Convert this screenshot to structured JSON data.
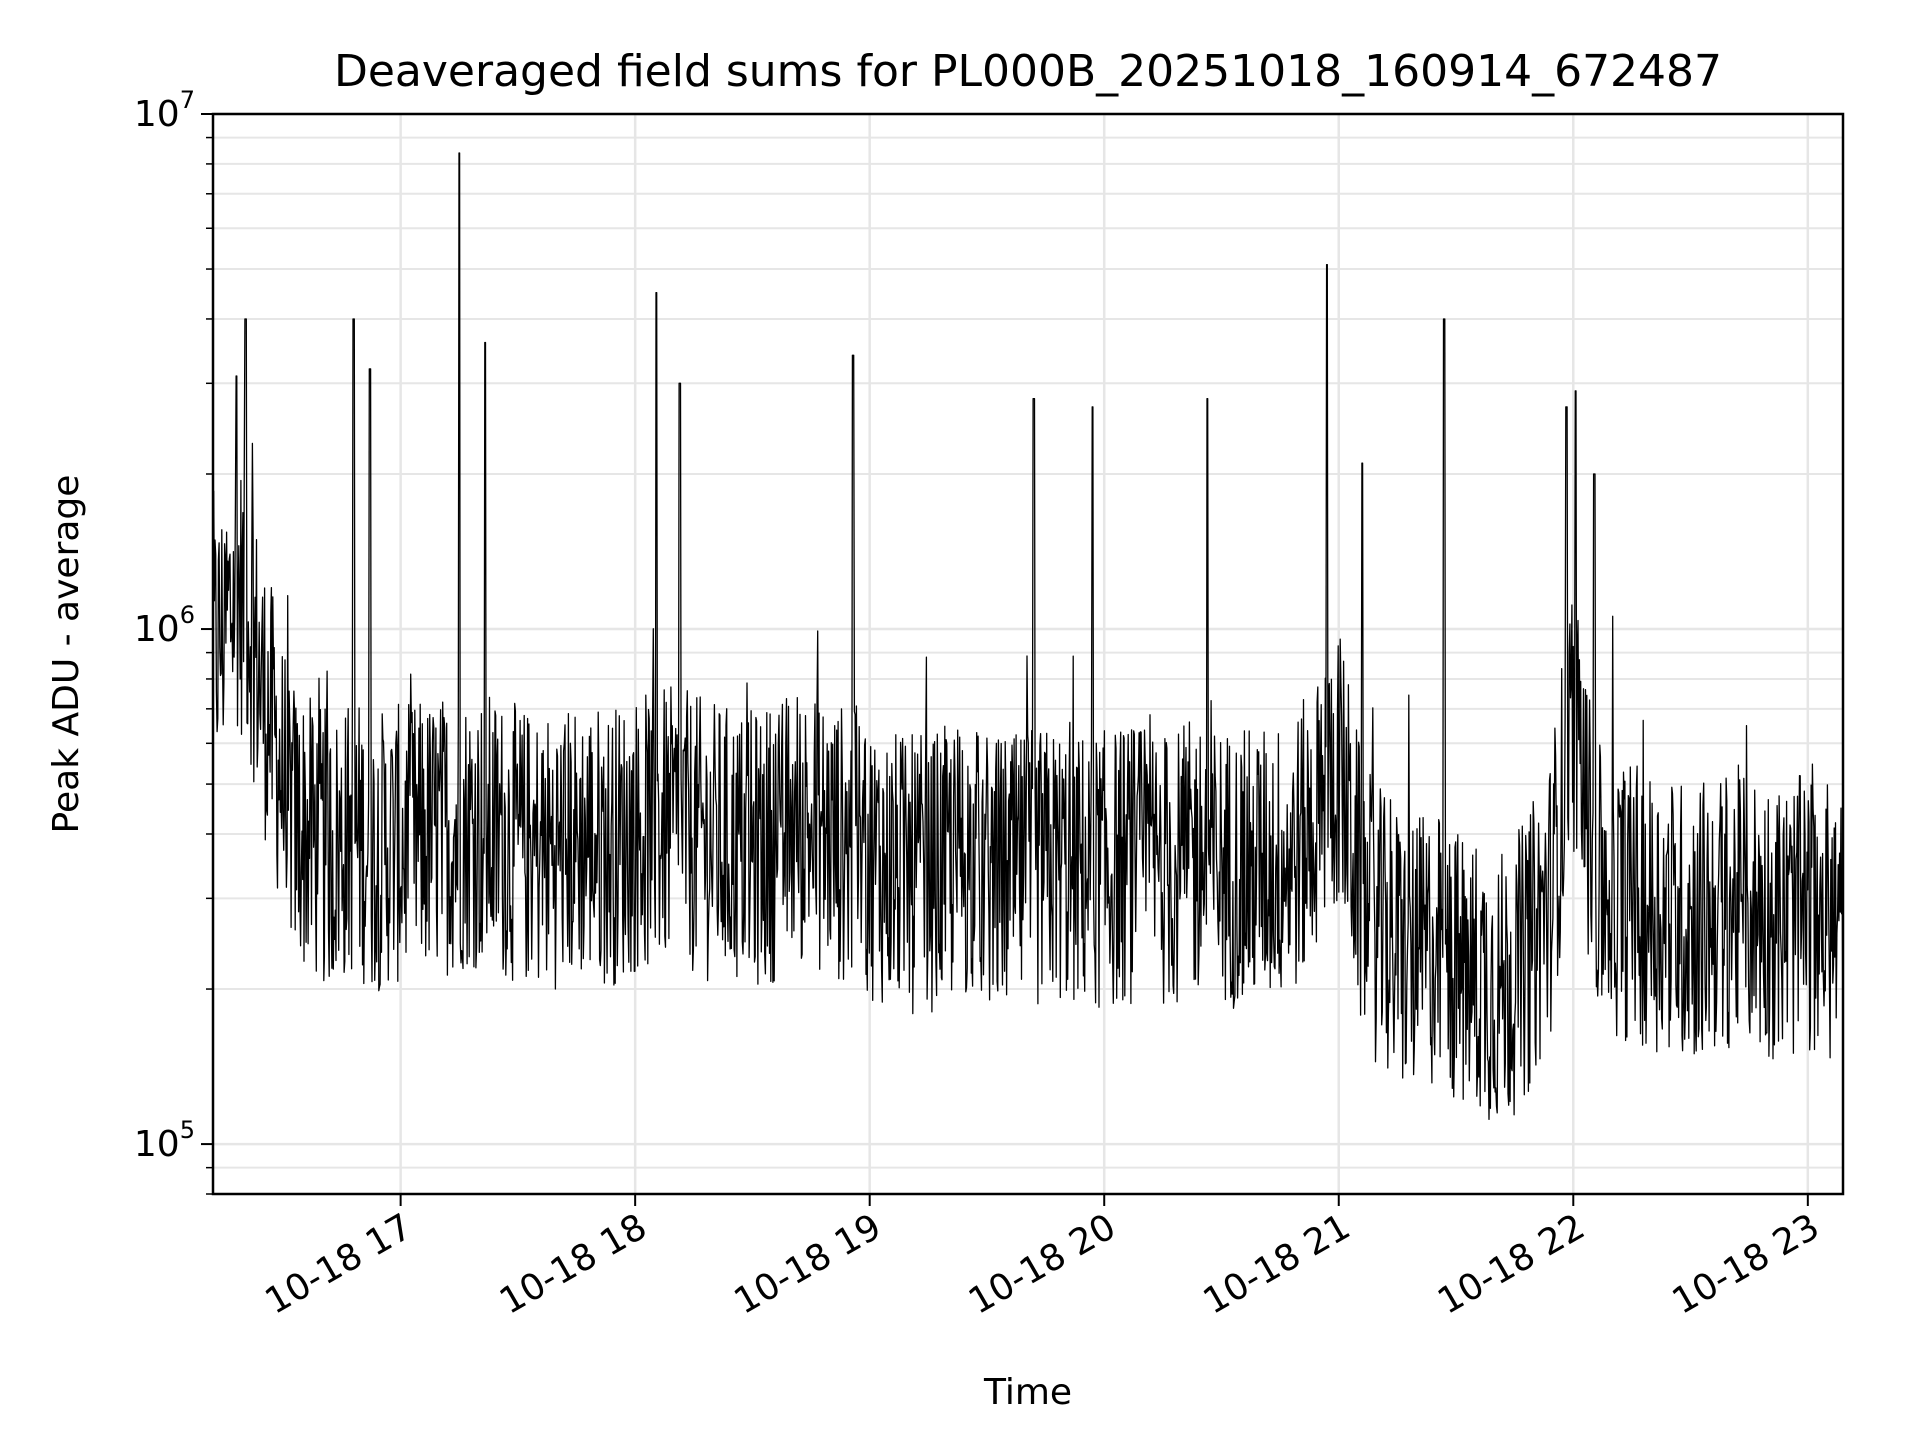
{
  "chart_data": {
    "type": "line",
    "title": "Deaveraged field sums for PL000B_20251018_160914_672487",
    "xlabel": "Time",
    "ylabel": "Peak ADU - average",
    "yscale": "log",
    "ylim": [
      80000,
      10000000
    ],
    "xlim_hours": [
      16.2,
      23.15
    ],
    "x_ticks": [
      {
        "hour": 17,
        "label": "10-18 17"
      },
      {
        "hour": 18,
        "label": "10-18 18"
      },
      {
        "hour": 19,
        "label": "10-18 19"
      },
      {
        "hour": 20,
        "label": "10-18 20"
      },
      {
        "hour": 21,
        "label": "10-18 21"
      },
      {
        "hour": 22,
        "label": "10-18 22"
      },
      {
        "hour": 23,
        "label": "10-18 23"
      }
    ],
    "y_ticks": [
      {
        "value": 100000,
        "base": "10",
        "exp": "5"
      },
      {
        "value": 1000000,
        "base": "10",
        "exp": "6"
      },
      {
        "value": 10000000,
        "base": "10",
        "exp": "7"
      }
    ],
    "grid": true,
    "line_color": "#000000",
    "x_unit": "hours (2025-10-18)",
    "series": [
      {
        "name": "Peak ADU - average",
        "x": [
          16.2,
          16.25,
          16.3,
          16.35,
          16.4,
          16.45,
          16.5,
          16.55,
          16.6,
          16.65,
          16.7,
          16.75,
          16.8,
          16.85,
          16.9,
          16.95,
          17.0,
          17.1,
          17.2,
          17.3,
          17.4,
          17.5,
          17.6,
          17.7,
          17.8,
          17.9,
          18.0,
          18.1,
          18.2,
          18.3,
          18.4,
          18.5,
          18.6,
          18.7,
          18.8,
          18.9,
          19.0,
          19.1,
          19.2,
          19.3,
          19.4,
          19.5,
          19.6,
          19.7,
          19.8,
          19.9,
          20.0,
          20.1,
          20.2,
          20.3,
          20.4,
          20.5,
          20.6,
          20.7,
          20.8,
          20.9,
          21.0,
          21.1,
          21.2,
          21.3,
          21.4,
          21.5,
          21.6,
          21.7,
          21.8,
          21.9,
          22.0,
          22.1,
          22.2,
          22.3,
          22.4,
          22.5,
          22.6,
          22.7,
          22.8,
          22.9,
          23.0,
          23.1,
          23.15
        ],
        "values": [
          900000,
          1000000,
          1200000,
          1100000,
          800000,
          650000,
          500000,
          420000,
          400000,
          380000,
          370000,
          380000,
          400000,
          380000,
          370000,
          380000,
          380000,
          390000,
          400000,
          410000,
          400000,
          380000,
          370000,
          380000,
          390000,
          380000,
          400000,
          410000,
          410000,
          390000,
          380000,
          370000,
          390000,
          420000,
          400000,
          380000,
          360000,
          340000,
          330000,
          340000,
          360000,
          340000,
          330000,
          340000,
          350000,
          340000,
          340000,
          350000,
          350000,
          340000,
          360000,
          350000,
          340000,
          350000,
          360000,
          420000,
          550000,
          300000,
          250000,
          230000,
          240000,
          220000,
          210000,
          200000,
          230000,
          300000,
          700000,
          320000,
          300000,
          290000,
          280000,
          270000,
          280000,
          290000,
          280000,
          270000,
          280000,
          270000,
          260000
        ]
      }
    ],
    "spikes": [
      {
        "x": 16.3,
        "value": 3100000
      },
      {
        "x": 16.34,
        "value": 4000000
      },
      {
        "x": 16.8,
        "value": 4000000
      },
      {
        "x": 16.87,
        "value": 3200000
      },
      {
        "x": 17.25,
        "value": 8400000
      },
      {
        "x": 17.36,
        "value": 3600000
      },
      {
        "x": 18.09,
        "value": 4500000
      },
      {
        "x": 18.19,
        "value": 3000000
      },
      {
        "x": 18.93,
        "value": 3400000
      },
      {
        "x": 19.7,
        "value": 2800000
      },
      {
        "x": 19.95,
        "value": 2700000
      },
      {
        "x": 20.44,
        "value": 2800000
      },
      {
        "x": 20.95,
        "value": 5100000
      },
      {
        "x": 21.45,
        "value": 4000000
      },
      {
        "x": 22.01,
        "value": 2900000
      },
      {
        "x": 21.97,
        "value": 2700000
      },
      {
        "x": 22.09,
        "value": 2000000
      },
      {
        "x": 21.1,
        "value": 2100000
      }
    ]
  }
}
